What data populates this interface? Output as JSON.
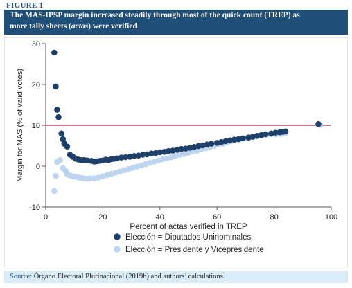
{
  "figure": {
    "label": "FIGURE 1",
    "title_line1": "The MAS-IPSP margin increased steadily through most of the quick count (TREP) as",
    "title_line2_pre": "more tally sheets (",
    "title_line2_em": "actas",
    "title_line2_post": ") were verified",
    "source_key": "Source:",
    "source_text": " Órgano Electoral Plurinacional (2019b) and authors’ calculations."
  },
  "colors": {
    "title_band": "#1f4e79",
    "series_dark": "#1f3f6b",
    "series_light": "#bdd5ee",
    "reference_line": "#c0506a",
    "source_band": "#d9ecf8"
  },
  "chart_data": {
    "type": "scatter",
    "xlabel": "Percent of actas verified in TREP",
    "ylabel": "Margin for MAS (% of valid votes)",
    "xlim": [
      0,
      100
    ],
    "ylim": [
      -10,
      30
    ],
    "xticks": [
      0,
      20,
      40,
      60,
      80,
      100
    ],
    "yticks": [
      -10,
      0,
      10,
      20,
      30
    ],
    "reference_line_y": 10,
    "legend_position": "bottom-center",
    "series": [
      {
        "name": "Elección = Diputados Uninominales",
        "color": "#1f3f6b",
        "points": [
          [
            3,
            27.8
          ],
          [
            3.5,
            19.5
          ],
          [
            4,
            13.8
          ],
          [
            4.5,
            12.0
          ],
          [
            5.5,
            8.0
          ],
          [
            6,
            6.6
          ],
          [
            6.5,
            5.5
          ],
          [
            7.5,
            4.8
          ],
          [
            8.5,
            2.8
          ],
          [
            9.5,
            2.3
          ],
          [
            10.5,
            1.8
          ],
          [
            11.5,
            1.6
          ],
          [
            12.5,
            1.5
          ],
          [
            13.5,
            1.5
          ],
          [
            14.5,
            1.4
          ],
          [
            16,
            1.3
          ],
          [
            17,
            1.1
          ],
          [
            18,
            1.2
          ],
          [
            19,
            1.3
          ],
          [
            20,
            1.4
          ],
          [
            21,
            1.6
          ],
          [
            22,
            1.5
          ],
          [
            23,
            1.7
          ],
          [
            24,
            1.8
          ],
          [
            25,
            1.9
          ],
          [
            26.5,
            2.1
          ],
          [
            28,
            2.2
          ],
          [
            29.5,
            2.3
          ],
          [
            31,
            2.5
          ],
          [
            32.5,
            2.6
          ],
          [
            34,
            2.8
          ],
          [
            35.5,
            2.9
          ],
          [
            37,
            3.1
          ],
          [
            38.5,
            3.2
          ],
          [
            40,
            3.4
          ],
          [
            41.5,
            3.5
          ],
          [
            43,
            3.7
          ],
          [
            44.5,
            3.8
          ],
          [
            46,
            4.0
          ],
          [
            47.5,
            4.2
          ],
          [
            49,
            4.3
          ],
          [
            50.5,
            4.5
          ],
          [
            52,
            4.7
          ],
          [
            53.5,
            4.9
          ],
          [
            55,
            5.1
          ],
          [
            56.5,
            5.3
          ],
          [
            58,
            5.5
          ],
          [
            60,
            5.7
          ],
          [
            61.5,
            5.9
          ],
          [
            63,
            6.1
          ],
          [
            64.5,
            6.3
          ],
          [
            66,
            6.5
          ],
          [
            67.5,
            6.6
          ],
          [
            69,
            6.8
          ],
          [
            71,
            7.0
          ],
          [
            72.5,
            7.2
          ],
          [
            74,
            7.4
          ],
          [
            75.5,
            7.6
          ],
          [
            77,
            7.8
          ],
          [
            79,
            8.0
          ],
          [
            80.5,
            8.2
          ],
          [
            82,
            8.3
          ],
          [
            83,
            8.4
          ],
          [
            84,
            8.5
          ],
          [
            95.5,
            10.3
          ]
        ]
      },
      {
        "name": "Elección = Presidente y Vicepresidente",
        "color": "#bdd5ee",
        "points": [
          [
            3,
            -6.1
          ],
          [
            3.5,
            -2.4
          ],
          [
            4,
            1.0
          ],
          [
            5,
            1.5
          ],
          [
            6,
            -0.5
          ],
          [
            7,
            -1.2
          ],
          [
            7.5,
            -1.9
          ],
          [
            8.5,
            -2.3
          ],
          [
            9.5,
            -2.5
          ],
          [
            10.5,
            -2.6
          ],
          [
            11.5,
            -2.8
          ],
          [
            12.5,
            -2.9
          ],
          [
            13.5,
            -3.0
          ],
          [
            14.5,
            -3.1
          ],
          [
            15.5,
            -3.0
          ],
          [
            17,
            -3.0
          ],
          [
            18.5,
            -2.8
          ],
          [
            20,
            -2.5
          ],
          [
            21.5,
            -2.2
          ],
          [
            23,
            -1.9
          ],
          [
            24.5,
            -1.6
          ],
          [
            26,
            -1.3
          ],
          [
            27.5,
            -1.0
          ],
          [
            29,
            -0.7
          ],
          [
            30.5,
            -0.4
          ],
          [
            32,
            -0.1
          ],
          [
            33.5,
            0.2
          ],
          [
            35,
            0.5
          ],
          [
            36.5,
            0.8
          ],
          [
            38,
            1.1
          ],
          [
            39.5,
            1.4
          ],
          [
            41,
            1.7
          ],
          [
            42.5,
            1.9
          ],
          [
            44,
            2.2
          ],
          [
            45.5,
            2.5
          ],
          [
            47,
            2.8
          ],
          [
            48.5,
            3.0
          ],
          [
            50,
            3.3
          ],
          [
            51.5,
            3.6
          ],
          [
            53,
            3.8
          ],
          [
            54.5,
            4.1
          ],
          [
            56,
            4.4
          ],
          [
            57.5,
            4.7
          ],
          [
            59,
            5.0
          ],
          [
            60.5,
            5.3
          ],
          [
            62,
            5.5
          ],
          [
            63.5,
            5.8
          ],
          [
            65,
            6.1
          ],
          [
            66.5,
            6.4
          ],
          [
            68,
            6.6
          ],
          [
            70,
            6.8
          ],
          [
            71.5,
            7.0
          ],
          [
            73,
            7.2
          ],
          [
            74.5,
            7.4
          ],
          [
            76,
            7.6
          ],
          [
            77.5,
            7.7
          ],
          [
            79,
            7.8
          ],
          [
            80.5,
            7.8
          ],
          [
            82,
            7.9
          ],
          [
            83,
            7.9
          ],
          [
            84,
            8.0
          ],
          [
            96,
            10.1
          ]
        ]
      }
    ]
  }
}
